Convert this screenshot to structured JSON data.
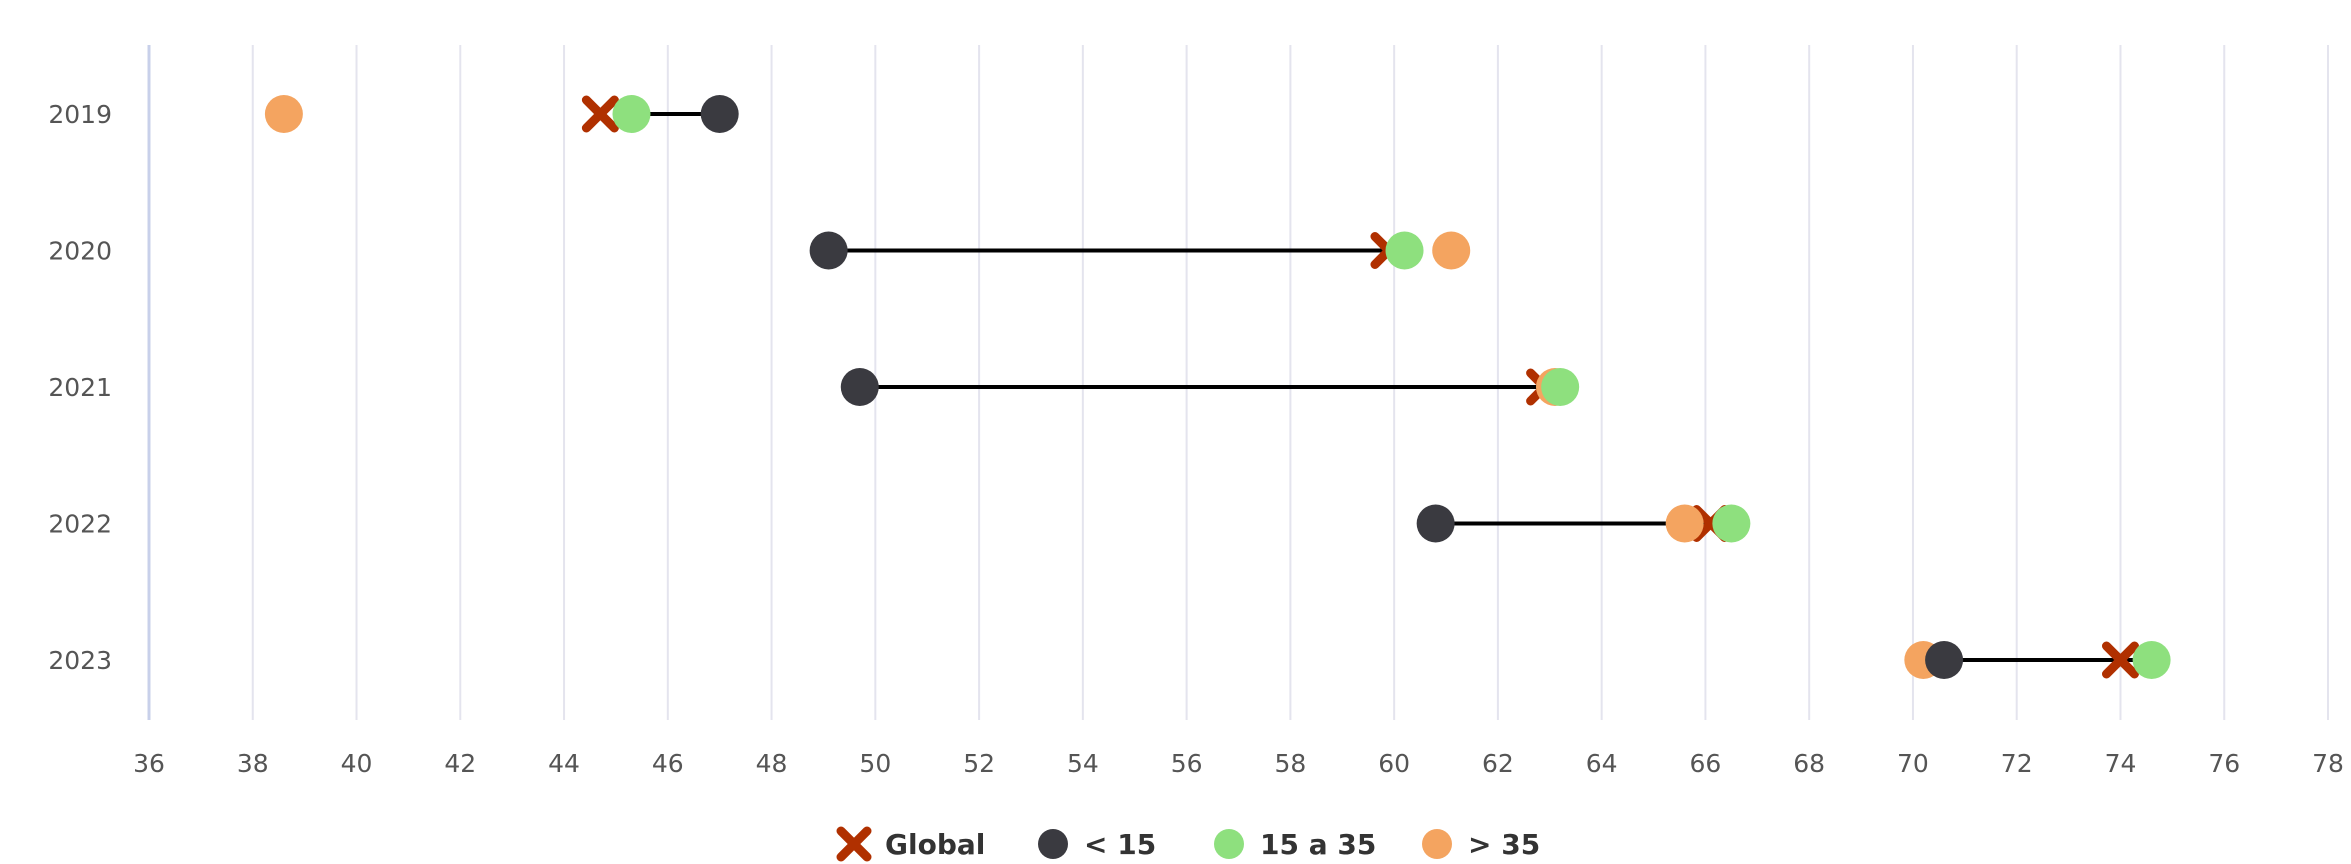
{
  "chart_data": {
    "type": "dumbbell",
    "title": "",
    "xlabel": "",
    "ylabel": "",
    "xlim": [
      36,
      78
    ],
    "x_ticks": [
      36,
      38,
      40,
      42,
      44,
      46,
      48,
      50,
      52,
      54,
      56,
      58,
      60,
      62,
      64,
      66,
      68,
      70,
      72,
      74,
      76,
      78
    ],
    "x_tick_labels": [
      "36",
      "38",
      "40",
      "42",
      "44",
      "46",
      "48",
      "50",
      "52",
      "54",
      "56",
      "58",
      "60",
      "62",
      "64",
      "66",
      "68",
      "70",
      "72",
      "74",
      "76",
      "78"
    ],
    "categories": [
      "2019",
      "2020",
      "2021",
      "2022",
      "2023"
    ],
    "grid": "vertical",
    "legend_position": "bottom-center",
    "series": [
      {
        "name": "Global",
        "marker": "x",
        "color": "#b03000",
        "values": [
          44.7,
          59.9,
          62.9,
          66.1,
          74.0
        ]
      },
      {
        "name": "< 15",
        "marker": "circle",
        "color": "#3a3a40",
        "values": [
          47.0,
          49.1,
          49.7,
          60.8,
          70.6
        ]
      },
      {
        "name": "15 a 35",
        "marker": "circle",
        "color": "#8ee07e",
        "values": [
          45.3,
          60.2,
          63.2,
          66.5,
          74.6
        ]
      },
      {
        "name": "> 35",
        "marker": "circle",
        "color": "#f4a460",
        "values": [
          38.6,
          61.1,
          63.1,
          65.6,
          70.2
        ]
      }
    ],
    "range_line": {
      "from_series": "< 15",
      "to_series": "15 a 35",
      "color": "#000000"
    }
  },
  "legend": {
    "items": [
      {
        "label": "Global",
        "marker": "x",
        "color": "#b03000"
      },
      {
        "label": "< 15",
        "marker": "circle",
        "color": "#3a3a40"
      },
      {
        "label": "15 a 35",
        "marker": "circle",
        "color": "#8ee07e"
      },
      {
        "label": "> 35",
        "marker": "circle",
        "color": "#f4a460"
      }
    ]
  },
  "colors": {
    "grid": "#e4e4ee",
    "axis": "#c8d0ea",
    "tick_text": "#555555"
  }
}
